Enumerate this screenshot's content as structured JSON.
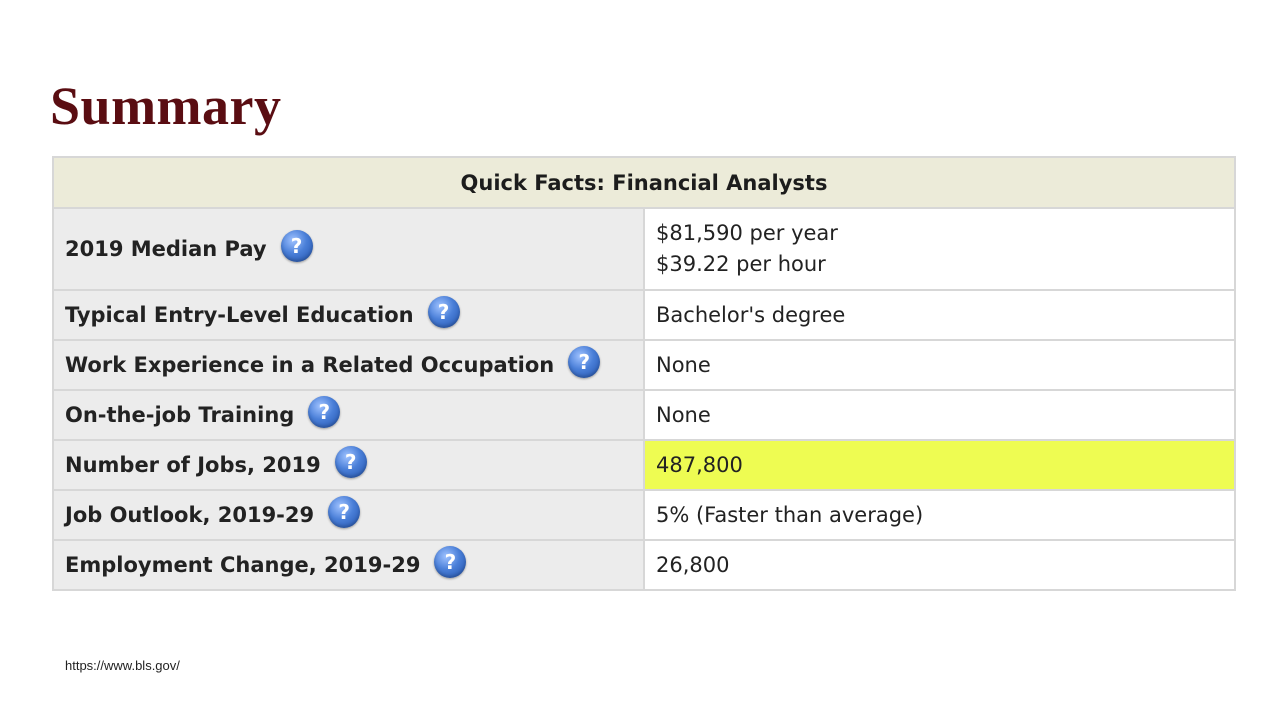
{
  "page": {
    "title": "Summary",
    "source": "https://www.bls.gov/"
  },
  "table": {
    "header": "Quick Facts: Financial Analysts",
    "help_glyph": "?",
    "help_icon": "question-mark-icon",
    "rows": [
      {
        "label": "2019 Median Pay",
        "values": [
          "$81,590 per year",
          "$39.22 per hour"
        ]
      },
      {
        "label": "Typical Entry-Level Education",
        "values": [
          "Bachelor's degree"
        ]
      },
      {
        "label": "Work Experience in a Related Occupation",
        "values": [
          "None"
        ]
      },
      {
        "label": "On-the-job Training",
        "values": [
          "None"
        ]
      },
      {
        "label": "Number of Jobs, 2019",
        "values": [
          "487,800"
        ],
        "highlight": true
      },
      {
        "label": "Job Outlook, 2019-29",
        "values": [
          "5% (Faster than average)"
        ]
      },
      {
        "label": "Employment Change, 2019-29",
        "values": [
          "26,800"
        ]
      }
    ]
  },
  "colors": {
    "title": "#5a0d12",
    "header_bg": "#ecebd9",
    "label_bg": "#ececec",
    "highlight_bg": "#eefc52",
    "help_icon": "#3b6fcc"
  }
}
